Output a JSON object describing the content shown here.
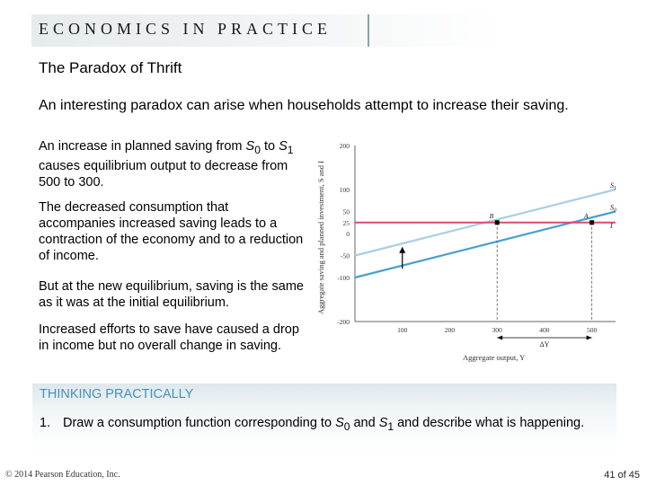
{
  "banner": {
    "text": "ECONOMICS IN PRACTICE"
  },
  "title": "The Paradox of Thrift",
  "intro": "An interesting paradox can arise when households attempt to increase their saving.",
  "paragraphs": {
    "p1": {
      "pre": "An increase in planned saving from ",
      "s0": "S",
      "s0_sub": "0",
      "mid": " to ",
      "s1": "S",
      "s1_sub": "1",
      "post": " causes equilibrium output to decrease from 500 to 300."
    },
    "p2": "The decreased consumption that accompanies increased saving leads to a contraction of the economy and to a reduction of income.",
    "p3": "But at the new equilibrium, saving is the same as it was at the initial equilibrium.",
    "p4": "Increased efforts to save have caused a drop in income but no overall change in saving."
  },
  "thinking": {
    "title": "THINKING PRACTICALLY",
    "number": "1.",
    "pre": "Draw a consumption function corresponding to ",
    "s0": "S",
    "s0_sub": "0",
    "mid": " and ",
    "s1": "S",
    "s1_sub": "1",
    "post": " and describe what is happening."
  },
  "footer": {
    "copyright": "© 2014 Pearson Education, Inc.",
    "page": "41 of 45"
  },
  "chart_data": {
    "type": "line",
    "xlabel": "Aggregate output, Y",
    "ylabel": "Aggregate saving and planned investment, S and I",
    "x_ticks": [
      "100",
      "200",
      "300",
      "400",
      "500"
    ],
    "y_ticks": [
      "200",
      "100",
      "50",
      "25",
      "0",
      "-50",
      "-100",
      "-200"
    ],
    "xlim": [
      0,
      550
    ],
    "ylim": [
      -200,
      200
    ],
    "series": [
      {
        "name": "S1",
        "label": "S",
        "sub": "1",
        "color": "#a7cfe3",
        "x": [
          0,
          550
        ],
        "y": [
          -50,
          100
        ]
      },
      {
        "name": "S0",
        "label": "S",
        "sub": "0",
        "color": "#4a9fd0",
        "x": [
          0,
          550
        ],
        "y": [
          -100,
          50
        ]
      },
      {
        "name": "I",
        "label": "I",
        "sub": "",
        "color": "#e0496a",
        "x": [
          0,
          550
        ],
        "y": [
          25,
          25
        ]
      }
    ],
    "points": [
      {
        "label": "B",
        "x": 300,
        "y": 25
      },
      {
        "label": "A",
        "x": 500,
        "y": 25
      }
    ],
    "arrow": {
      "x": 100,
      "from": -80,
      "to": -30
    },
    "delta_label": "ΔY",
    "delta_range": [
      300,
      500
    ]
  }
}
